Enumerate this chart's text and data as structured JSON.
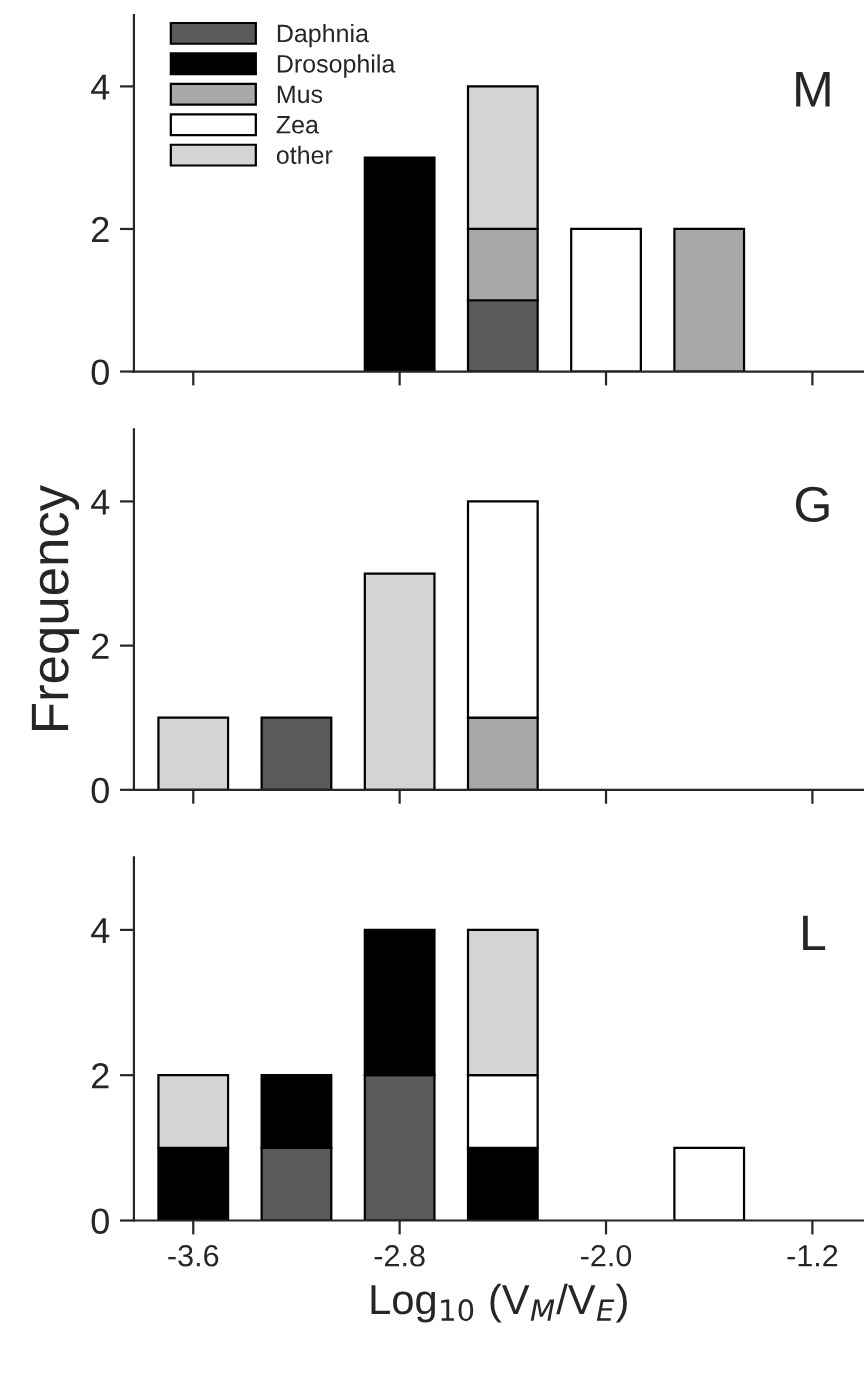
{
  "chart_data": [
    {
      "type": "bar",
      "stacked": true,
      "x": [
        -2.8,
        -2.4,
        -2.0,
        -1.6
      ],
      "xlim": [
        -3.83,
        -1.0
      ],
      "xticks": [
        -3.6,
        -2.8,
        -2.0,
        -1.2
      ],
      "ylim": [
        0,
        5
      ],
      "yticks": [
        0,
        2,
        4
      ],
      "tick_labels": "y",
      "legend": "top left",
      "grid": false,
      "annotations": [
        "M"
      ],
      "series": [
        {
          "name": "Daphnia",
          "color": "#5a5a5a",
          "values": [
            null,
            1,
            null,
            null
          ]
        },
        {
          "name": "Drosophila",
          "color": "#000000",
          "values": [
            3,
            null,
            null,
            null
          ]
        },
        {
          "name": "Mus",
          "color": "#a8a8a8",
          "values": [
            null,
            1,
            null,
            2
          ]
        },
        {
          "name": "Zea",
          "color": "#ffffff",
          "values": [
            null,
            null,
            2,
            null
          ]
        },
        {
          "name": "other",
          "color": "#d4d4d4",
          "values": [
            null,
            2,
            null,
            null
          ]
        }
      ]
    },
    {
      "type": "bar",
      "stacked": true,
      "x": [
        -3.6,
        -3.2,
        -2.8,
        -2.4
      ],
      "xlim": [
        -3.83,
        -1.0
      ],
      "xticks": [
        -3.6,
        -2.8,
        -2.0,
        -1.2
      ],
      "ylim": [
        0,
        5
      ],
      "yticks": [
        0,
        2,
        4
      ],
      "tick_labels": "y",
      "ylabel": "Frequency",
      "grid": false,
      "annotations": [
        "G"
      ],
      "series": [
        {
          "color": "#5a5a5a",
          "values": [
            null,
            1,
            null,
            null
          ]
        },
        {
          "color": "#a8a8a8",
          "values": [
            null,
            null,
            null,
            1
          ]
        },
        {
          "color": "#ffffff",
          "values": [
            null,
            null,
            null,
            3
          ]
        },
        {
          "color": "#d4d4d4",
          "values": [
            1,
            null,
            3,
            null
          ]
        }
      ]
    },
    {
      "type": "bar",
      "stacked": true,
      "x": [
        -3.6,
        -3.2,
        -2.8,
        -2.4,
        -1.6
      ],
      "xlim": [
        -3.83,
        -1.0
      ],
      "xticks": [
        -3.6,
        -2.8,
        {
          "value": -2.0,
          "label": "-2.0"
        },
        -1.2
      ],
      "ylim": [
        0,
        5
      ],
      "yticks": [
        0,
        2,
        4
      ],
      "xlabel": "Log$_{10}$ (V$_{M}$/V$_{E}$)",
      "grid": false,
      "annotations": [
        "L"
      ],
      "series": [
        {
          "color": "#5a5a5a",
          "values": [
            null,
            1,
            2,
            null,
            null
          ]
        },
        {
          "color": "#000000",
          "values": [
            1,
            1,
            2,
            1,
            null
          ]
        },
        {
          "color": "#ffffff",
          "values": [
            null,
            null,
            null,
            1,
            1
          ]
        },
        {
          "color": "#d4d4d4",
          "values": [
            1,
            null,
            null,
            2,
            null
          ]
        }
      ]
    }
  ]
}
